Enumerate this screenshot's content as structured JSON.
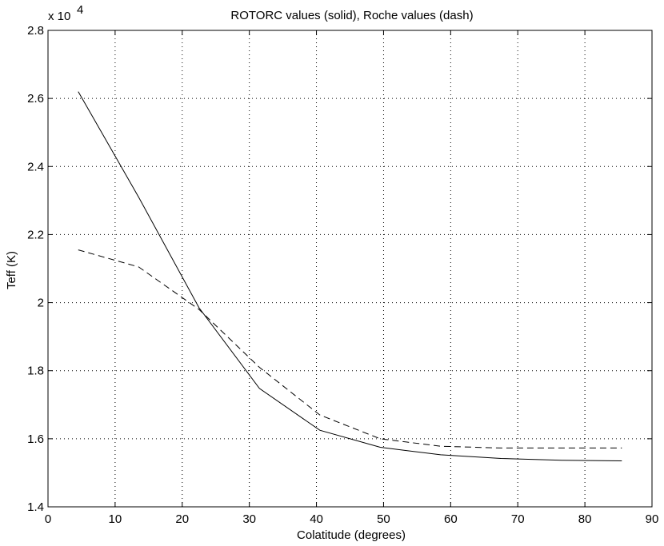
{
  "chart_data": {
    "type": "line",
    "title": "ROTORC values (solid), Roche values (dash)",
    "xlabel": "Colatitude (degrees)",
    "ylabel": "Teff (K)",
    "xlim": [
      0,
      90
    ],
    "ylim": [
      1.4,
      2.8
    ],
    "y_multiplier": "x 10^4",
    "y_multiplier_base": "x 10",
    "y_multiplier_exp": "4",
    "grid": true,
    "x_ticks": [
      "0",
      "10",
      "20",
      "30",
      "40",
      "50",
      "60",
      "70",
      "80",
      "90"
    ],
    "y_ticks": [
      "1.4",
      "1.6",
      "1.8",
      "2",
      "2.2",
      "2.4",
      "2.6",
      "2.8"
    ],
    "series": [
      {
        "style": "solid",
        "x": [
          4.5,
          13.5,
          22.5,
          31.5,
          40.5,
          49.5,
          58.5,
          67.5,
          76.5,
          85.5
        ],
        "y": [
          2.62,
          2.31,
          1.985,
          1.748,
          1.625,
          1.575,
          1.553,
          1.542,
          1.537,
          1.535
        ]
      },
      {
        "style": "dashed",
        "x": [
          4.5,
          13.5,
          22.5,
          31.5,
          40.5,
          49.5,
          58.5,
          67.5,
          76.5,
          85.5
        ],
        "y": [
          2.155,
          2.105,
          1.98,
          1.81,
          1.67,
          1.6,
          1.578,
          1.573,
          1.573,
          1.573
        ]
      }
    ]
  }
}
